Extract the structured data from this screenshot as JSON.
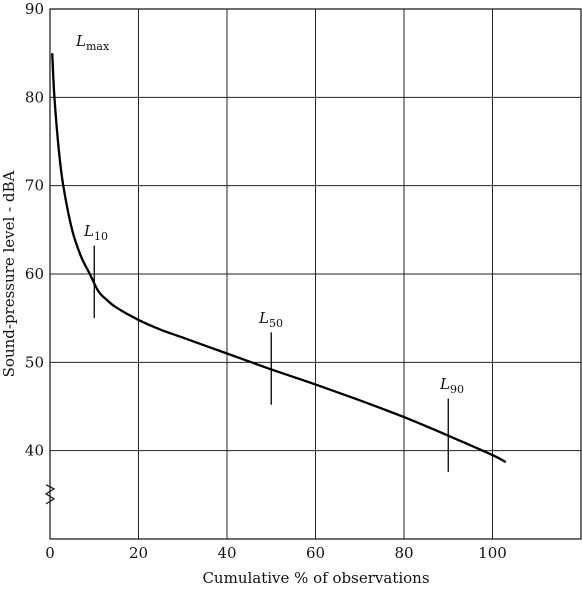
{
  "chart_data": {
    "type": "line",
    "xlabel": "Cumulative % of observations",
    "ylabel": "Sound-pressure level - dBA",
    "xlim": [
      0,
      120
    ],
    "ylim": [
      30,
      90
    ],
    "xticks": [
      "0",
      "20",
      "40",
      "60",
      "80",
      "100"
    ],
    "yticks": [
      "40",
      "50",
      "60",
      "70",
      "80",
      "90"
    ],
    "grid": true,
    "axis_break": "y",
    "series": [
      {
        "x": [
          0.5,
          1,
          2,
          3,
          5,
          7,
          9,
          11,
          13,
          15,
          20,
          25,
          30,
          40,
          50,
          60,
          70,
          80,
          90,
          100,
          103
        ],
        "y": [
          85,
          80,
          74,
          70,
          65,
          62,
          60,
          58,
          57,
          56.2,
          54.8,
          53.7,
          52.8,
          51.0,
          49.2,
          47.5,
          45.7,
          43.8,
          41.7,
          39.5,
          38.7
        ]
      }
    ],
    "annotations": [
      {
        "id": "lmax",
        "main": "L",
        "sub": "max",
        "x": 6,
        "y": 86
      },
      {
        "id": "l10",
        "main": "L",
        "sub": "10",
        "x": 10,
        "y": 58.3,
        "marker_from": 55,
        "marker_to": 63.2
      },
      {
        "id": "l50",
        "main": "L",
        "sub": "50",
        "x": 50,
        "y": 49.3,
        "marker_from": 45.2,
        "marker_to": 53.4
      },
      {
        "id": "l90",
        "main": "L",
        "sub": "90",
        "x": 90,
        "y": 41.7,
        "marker_from": 37.6,
        "marker_to": 45.9
      }
    ]
  }
}
